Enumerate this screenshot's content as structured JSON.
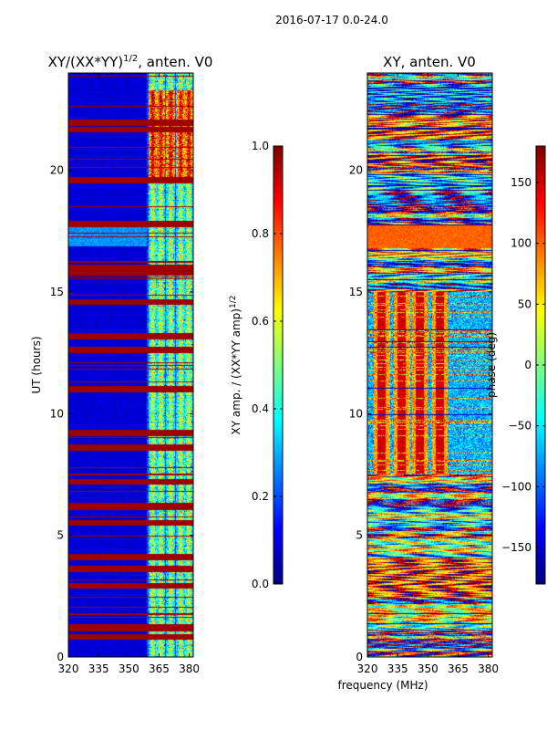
{
  "figure_title": "2016-07-17 0.0-24.0",
  "shared_xlabel": "frequency (MHz)",
  "chart_data": [
    {
      "type": "heatmap",
      "title": "XY/(XX*YY)",
      "title_exponent": "1/2",
      "title_suffix": ", anten. V0",
      "xlabel": "",
      "ylabel": "UT (hours)",
      "xlim": [
        320,
        382
      ],
      "ylim": [
        0,
        24
      ],
      "xticks": [
        320,
        335,
        350,
        365,
        380
      ],
      "yticks": [
        0,
        5,
        10,
        15,
        20
      ],
      "colorbar": {
        "label": "XY amp. / (XX*YY amp)",
        "label_exponent": "1/2",
        "range": [
          0.0,
          1.0
        ],
        "ticks": [
          "0.0",
          "0.2",
          "0.4",
          "0.6",
          "0.8",
          "1.0"
        ],
        "colormap": "jet"
      },
      "features": {
        "background_value": 0.05,
        "band_start_mhz": 359,
        "band_columns_mhz": [
          362,
          366,
          371,
          376,
          380
        ],
        "bright_hour_range": [
          19.5,
          23.3
        ],
        "red_flag_rows_hours": [
          22.0,
          21.7,
          19.6,
          17.8,
          16.0,
          15.8,
          14.6,
          13.2,
          12.6,
          11.0,
          9.2,
          8.6,
          7.2,
          6.2,
          5.5,
          4.1,
          3.6,
          2.9,
          1.2,
          0.8
        ]
      }
    },
    {
      "type": "heatmap",
      "title": "XY, anten. V0",
      "xlabel": "frequency (MHz)",
      "ylabel": "",
      "xlim": [
        320,
        382
      ],
      "ylim": [
        0,
        24
      ],
      "xticks": [
        320,
        335,
        350,
        365,
        380
      ],
      "yticks": [
        0,
        5,
        10,
        15,
        20
      ],
      "colorbar": {
        "label": "phase (deg)",
        "range": [
          -180,
          180
        ],
        "ticks": [
          "−150",
          "−100",
          "−50",
          "0",
          "50",
          "100",
          "150"
        ],
        "tick_values": [
          -150,
          -100,
          -50,
          0,
          50,
          100,
          150
        ],
        "colormap": "jet"
      },
      "features": {
        "stripe_centers_mhz": [
          327,
          337,
          346,
          356
        ],
        "stripe_hour_range": [
          7.5,
          15.0
        ],
        "orange_block_hour_range": [
          16.8,
          17.8
        ]
      }
    }
  ],
  "colors": {
    "jet_dark_blue": "#00008f",
    "jet_red": "#800000"
  }
}
